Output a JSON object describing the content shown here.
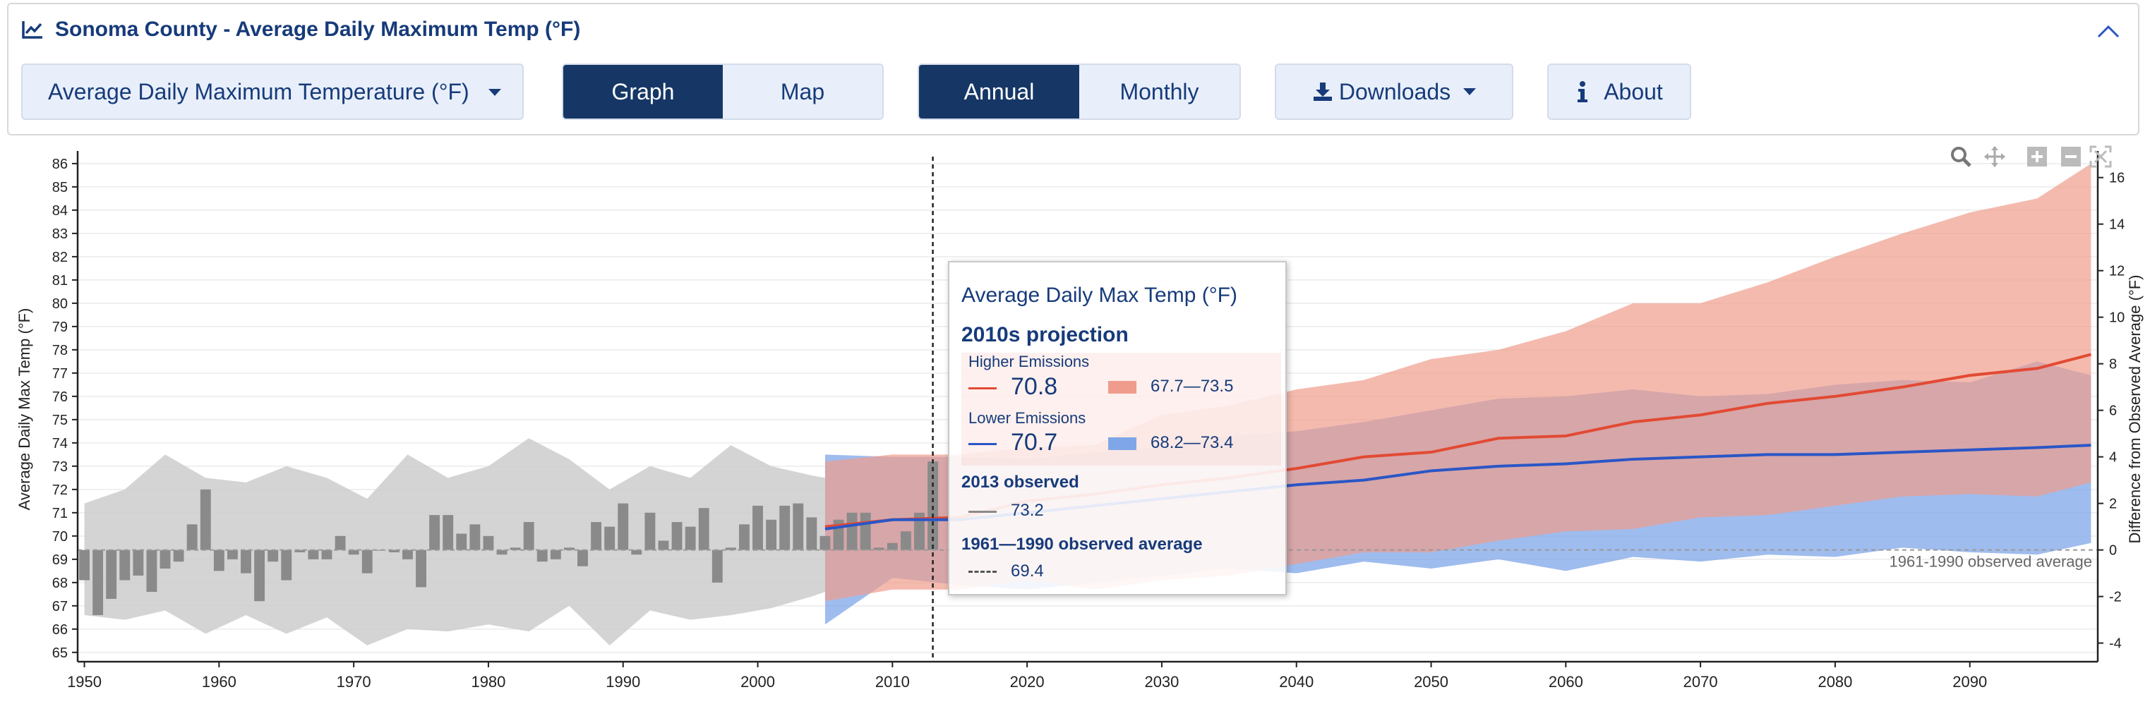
{
  "header": {
    "title": "Sonoma County - Average Daily Maximum Temp (°F)"
  },
  "controls": {
    "variable": "Average Daily Maximum Temperature (°F)",
    "view_tabs": [
      "Graph",
      "Map"
    ],
    "period_tabs": [
      "Annual",
      "Monthly"
    ],
    "downloads": "Downloads",
    "about": "About"
  },
  "tooltip": {
    "title": "Average Daily Max Temp (°F)",
    "projection_heading": "2010s projection",
    "higher_label": "Higher Emissions",
    "higher_value": "70.8",
    "higher_range": "67.7—73.5",
    "lower_label": "Lower Emissions",
    "lower_value": "70.7",
    "lower_range": "68.2—73.4",
    "observed_heading": "2013 observed",
    "observed_value": "73.2",
    "baseline_heading": "1961—1990 observed average",
    "baseline_value": "69.4"
  },
  "colors": {
    "higher": "#e24a33",
    "lower": "#2a56c6",
    "higher_band": "#ef9c8c",
    "lower_band": "#7fa6e8",
    "observed_band": "#cccccc",
    "bars": "#8a8a8a",
    "accent": "#173b7a"
  },
  "chart_data": {
    "type": "line",
    "ylabel": "Average Daily Max Temp (°F)",
    "y2label": "Difference from Observed Average (°F)",
    "ylim": [
      64.6,
      86.3
    ],
    "y2lim": [
      -4.8,
      16.9
    ],
    "xlim": [
      1949.5,
      2099.5
    ],
    "x_ticks": [
      1950,
      1960,
      1970,
      1980,
      1990,
      2000,
      2010,
      2020,
      2030,
      2040,
      2050,
      2060,
      2070,
      2080,
      2090
    ],
    "y_ticks": [
      65,
      66,
      67,
      68,
      69,
      70,
      71,
      72,
      73,
      74,
      75,
      76,
      77,
      78,
      79,
      80,
      81,
      82,
      83,
      84,
      85,
      86
    ],
    "y2_ticks": [
      -4,
      -2,
      0,
      2,
      4,
      6,
      8,
      10,
      12,
      14,
      16
    ],
    "baseline": 69.4,
    "baseline_label": "1961-1990 observed average",
    "cursor_year": 2013,
    "observed": {
      "name": "Observed",
      "years": [
        1950,
        1951,
        1952,
        1953,
        1954,
        1955,
        1956,
        1957,
        1958,
        1959,
        1960,
        1961,
        1962,
        1963,
        1964,
        1965,
        1966,
        1967,
        1968,
        1969,
        1970,
        1971,
        1972,
        1973,
        1974,
        1975,
        1976,
        1977,
        1978,
        1979,
        1980,
        1981,
        1982,
        1983,
        1984,
        1985,
        1986,
        1987,
        1988,
        1989,
        1990,
        1991,
        1992,
        1993,
        1994,
        1995,
        1996,
        1997,
        1998,
        1999,
        2000,
        2001,
        2002,
        2003,
        2004,
        2005,
        2006,
        2007,
        2008,
        2009,
        2010,
        2011,
        2012,
        2013
      ],
      "values": [
        68.1,
        66.6,
        67.3,
        68.1,
        68.3,
        67.6,
        68.6,
        68.9,
        70.5,
        72.0,
        68.5,
        69.0,
        68.4,
        67.2,
        68.9,
        68.1,
        69.3,
        69.0,
        69.0,
        70.0,
        69.2,
        68.4,
        69.4,
        69.3,
        69.0,
        67.8,
        70.9,
        70.9,
        70.1,
        70.5,
        70.0,
        69.2,
        69.5,
        70.6,
        68.9,
        69.0,
        69.5,
        68.7,
        70.6,
        70.4,
        71.4,
        69.2,
        71.0,
        69.8,
        70.6,
        70.4,
        71.2,
        68.0,
        69.5,
        70.5,
        71.3,
        70.7,
        71.3,
        71.4,
        70.8,
        70.0,
        70.7,
        71.0,
        71.0,
        69.5,
        69.7,
        70.2,
        71.0,
        73.2
      ]
    },
    "observed_band": {
      "years": [
        1950,
        1953,
        1956,
        1959,
        1962,
        1965,
        1968,
        1971,
        1974,
        1977,
        1980,
        1983,
        1986,
        1989,
        1992,
        1995,
        1998,
        2001,
        2004,
        2005
      ],
      "high": [
        71.4,
        72.0,
        73.5,
        72.5,
        72.3,
        73.0,
        72.5,
        71.6,
        73.5,
        72.5,
        73.0,
        74.2,
        73.3,
        72.0,
        73.0,
        72.5,
        73.9,
        73.0,
        72.6,
        72.5
      ],
      "low": [
        66.6,
        66.4,
        66.8,
        65.8,
        66.6,
        65.8,
        66.5,
        65.3,
        66.0,
        65.9,
        66.2,
        65.9,
        67.0,
        65.3,
        66.8,
        66.4,
        66.6,
        66.9,
        67.4,
        67.6
      ]
    },
    "series": [
      {
        "name": "Higher Emissions",
        "years": [
          2005,
          2010,
          2015,
          2020,
          2025,
          2030,
          2035,
          2040,
          2045,
          2050,
          2055,
          2060,
          2065,
          2070,
          2075,
          2080,
          2085,
          2090,
          2095,
          2099
        ],
        "values": [
          70.4,
          70.7,
          70.8,
          71.5,
          71.8,
          72.2,
          72.5,
          72.9,
          73.4,
          73.6,
          74.2,
          74.3,
          74.9,
          75.2,
          75.7,
          76.0,
          76.4,
          76.9,
          77.2,
          77.8
        ],
        "high": [
          73.2,
          73.5,
          73.5,
          73.8,
          73.9,
          75.2,
          75.6,
          76.3,
          76.7,
          77.6,
          78.0,
          78.8,
          80.0,
          80.0,
          80.9,
          82.0,
          83.0,
          83.9,
          84.5,
          86.0
        ],
        "low": [
          67.2,
          67.7,
          67.7,
          68.1,
          67.7,
          68.1,
          68.3,
          68.8,
          69.3,
          69.3,
          69.8,
          70.2,
          70.3,
          70.8,
          70.9,
          71.3,
          71.7,
          71.8,
          71.7,
          72.3
        ]
      },
      {
        "name": "Lower Emissions",
        "years": [
          2005,
          2010,
          2015,
          2020,
          2025,
          2030,
          2035,
          2040,
          2045,
          2050,
          2055,
          2060,
          2065,
          2070,
          2075,
          2080,
          2085,
          2090,
          2095,
          2099
        ],
        "values": [
          70.3,
          70.7,
          70.7,
          71.0,
          71.3,
          71.6,
          71.9,
          72.2,
          72.4,
          72.8,
          73.0,
          73.1,
          73.3,
          73.4,
          73.5,
          73.5,
          73.6,
          73.7,
          73.8,
          73.9
        ],
        "high": [
          73.5,
          73.4,
          73.4,
          73.3,
          73.6,
          73.8,
          74.3,
          74.5,
          74.9,
          75.4,
          75.9,
          76.0,
          76.3,
          76.0,
          76.1,
          76.5,
          76.7,
          76.6,
          77.5,
          76.9
        ],
        "low": [
          66.2,
          68.2,
          67.9,
          67.7,
          68.0,
          68.3,
          68.6,
          68.4,
          68.9,
          68.6,
          69.0,
          68.5,
          69.1,
          68.9,
          69.2,
          69.1,
          69.5,
          69.3,
          69.2,
          69.7
        ]
      }
    ]
  }
}
